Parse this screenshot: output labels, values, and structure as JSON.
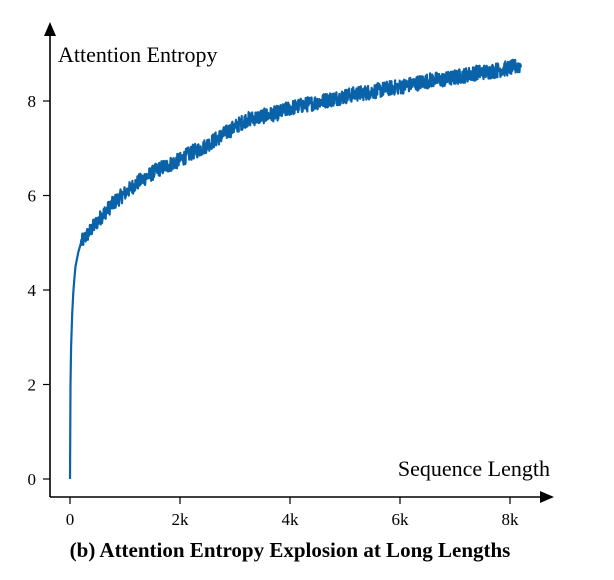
{
  "chart_data": {
    "type": "line",
    "title": "(b) Attention Entropy Explosion at Long Lengths",
    "xlabel": "Sequence Length",
    "ylabel": "Attention Entropy",
    "xlim": [
      0,
      8500
    ],
    "ylim": [
      0,
      9.2
    ],
    "x_ticks": [
      {
        "value": 0,
        "label": "0"
      },
      {
        "value": 2000,
        "label": "2k"
      },
      {
        "value": 4000,
        "label": "4k"
      },
      {
        "value": 6000,
        "label": "6k"
      },
      {
        "value": 8000,
        "label": "8k"
      }
    ],
    "y_ticks": [
      {
        "value": 0,
        "label": "0"
      },
      {
        "value": 2,
        "label": "2"
      },
      {
        "value": 4,
        "label": "4"
      },
      {
        "value": 6,
        "label": "6"
      },
      {
        "value": 8,
        "label": "8"
      }
    ],
    "grid": false,
    "legend": "none",
    "series": [
      {
        "color": "#0a63a8",
        "x": [
          0,
          10,
          20,
          40,
          60,
          80,
          100,
          150,
          200,
          300,
          400,
          500,
          600,
          800,
          1000,
          1200,
          1400,
          1600,
          1800,
          2000,
          2200,
          2400,
          2600,
          2800,
          3000,
          3200,
          3400,
          3600,
          3800,
          4000,
          4200,
          4400,
          4600,
          4800,
          5000,
          5200,
          5400,
          5600,
          5800,
          6000,
          6200,
          6400,
          6600,
          6800,
          7000,
          7200,
          7400,
          7600,
          7800,
          8000,
          8200
        ],
        "y": [
          0,
          2.0,
          2.8,
          3.5,
          3.95,
          4.25,
          4.5,
          4.8,
          5.0,
          5.15,
          5.3,
          5.45,
          5.6,
          5.85,
          6.05,
          6.25,
          6.4,
          6.55,
          6.65,
          6.75,
          6.9,
          7.0,
          7.15,
          7.3,
          7.45,
          7.6,
          7.65,
          7.7,
          7.75,
          7.85,
          7.9,
          7.95,
          8.0,
          8.05,
          8.1,
          8.15,
          8.18,
          8.22,
          8.27,
          8.3,
          8.35,
          8.4,
          8.45,
          8.45,
          8.5,
          8.55,
          8.6,
          8.62,
          8.66,
          8.7,
          8.75
        ]
      }
    ]
  }
}
